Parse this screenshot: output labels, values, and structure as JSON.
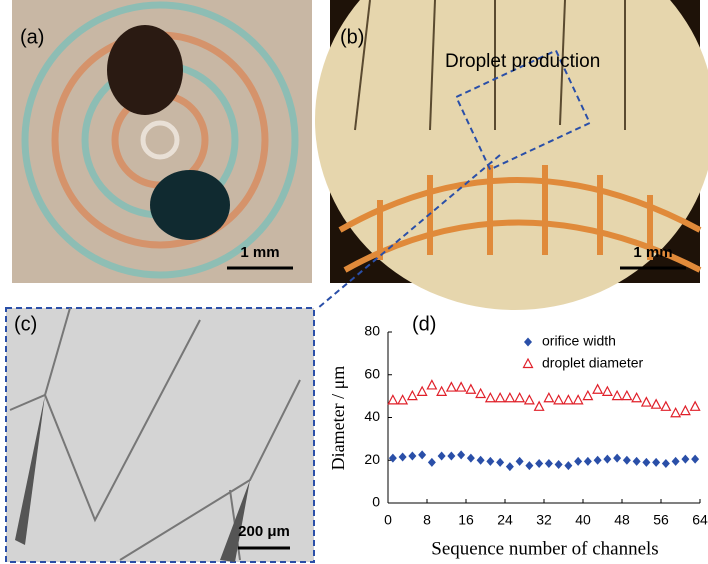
{
  "panels": {
    "a": {
      "label": "(a)",
      "scale_bar": "1 mm"
    },
    "b": {
      "label": "(b)",
      "annotation": "Droplet production",
      "scale_bar": "1 mm"
    },
    "c": {
      "label": "(c)",
      "scale_bar": "200 μm"
    },
    "d": {
      "label": "(d)"
    }
  },
  "chart_data": {
    "type": "scatter",
    "x_label": "Sequence number of channels",
    "y_label": "Diameter / μm",
    "x": [
      1,
      3,
      5,
      7,
      9,
      11,
      13,
      15,
      17,
      19,
      21,
      23,
      25,
      27,
      29,
      31,
      33,
      35,
      37,
      39,
      41,
      43,
      45,
      47,
      49,
      51,
      53,
      55,
      57,
      59,
      61,
      63
    ],
    "series": [
      {
        "name": "orifice width",
        "color": "#2a4fa8",
        "marker": "diamond",
        "values": [
          21,
          21.5,
          22,
          22.5,
          19,
          22,
          22,
          22.5,
          21,
          20,
          19.5,
          19,
          17,
          19.5,
          17.5,
          18.5,
          18.5,
          18,
          17.5,
          19.5,
          19.5,
          20,
          20.5,
          21,
          20,
          19.5,
          19,
          19,
          18.5,
          19.5,
          20.5,
          20.5
        ]
      },
      {
        "name": "droplet diameter",
        "color": "#e0202a",
        "marker": "triangle-open",
        "values": [
          48,
          48,
          50,
          52,
          55,
          52,
          54,
          54,
          53,
          51,
          49,
          49,
          49,
          49,
          48,
          45,
          49,
          48,
          48,
          48,
          50,
          53,
          52,
          50,
          50,
          49,
          47,
          46,
          45,
          42,
          43,
          45
        ]
      }
    ],
    "xlim": [
      0,
      64
    ],
    "xticks": [
      0,
      8,
      16,
      24,
      32,
      40,
      48,
      56,
      64
    ],
    "ylim": [
      0,
      80
    ],
    "yticks": [
      0,
      20,
      40,
      60,
      80
    ],
    "legend": "upper right"
  }
}
